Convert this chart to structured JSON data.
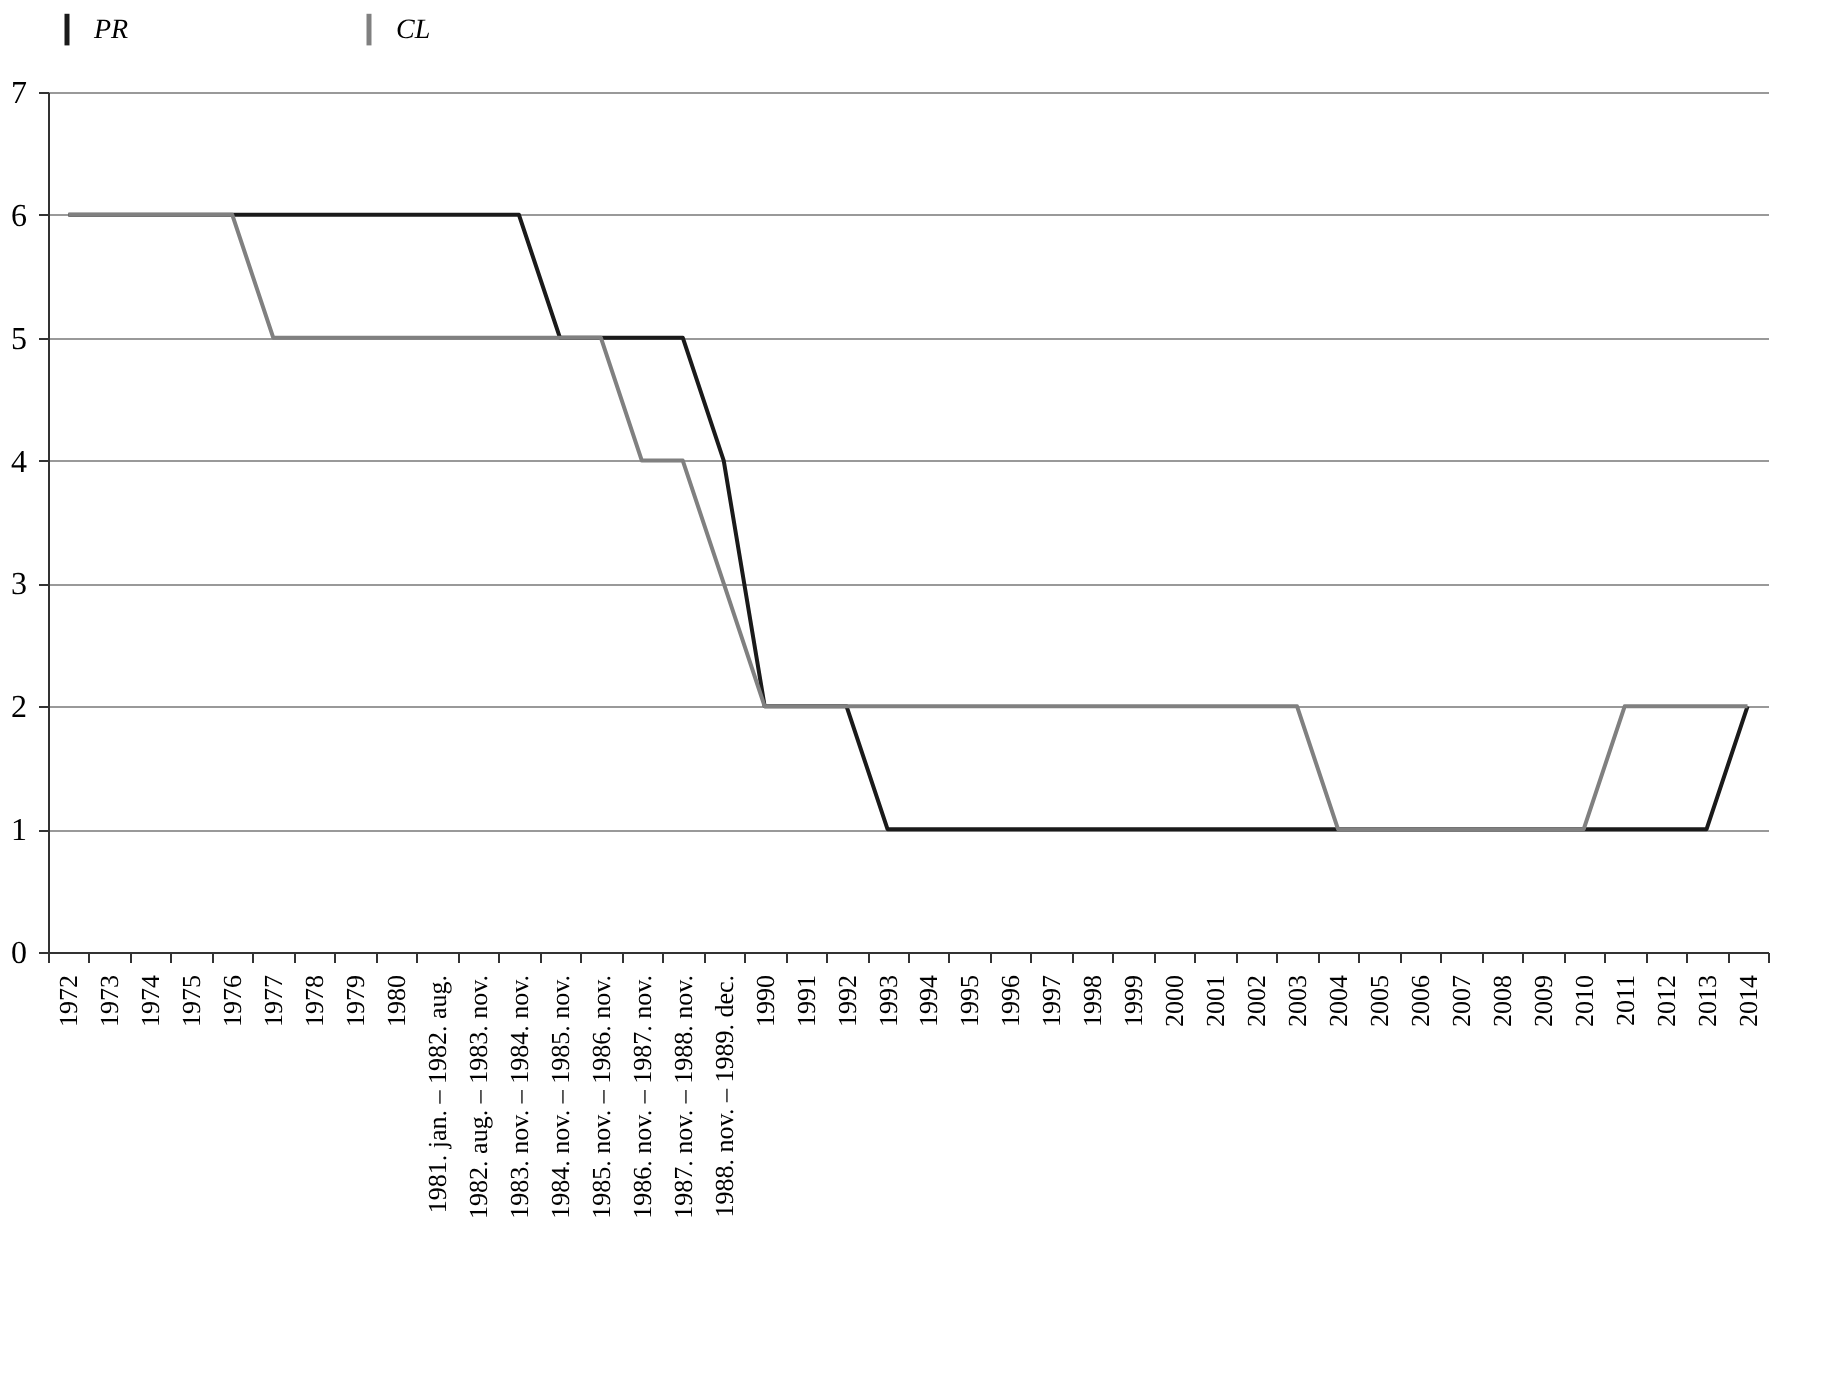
{
  "chart_data": {
    "type": "line",
    "categories": [
      "1972",
      "1973",
      "1974",
      "1975",
      "1976",
      "1977",
      "1978",
      "1979",
      "1980",
      "1981. jan. – 1982. aug.",
      "1982. aug. – 1983. nov.",
      "1983. nov. – 1984. nov.",
      "1984. nov. – 1985. nov.",
      "1985. nov. – 1986. nov.",
      "1986. nov. – 1987. nov.",
      "1987. nov. – 1988. nov.",
      "1988. nov. – 1989. dec.",
      "1990",
      "1991",
      "1992",
      "1993",
      "1994",
      "1995",
      "1996",
      "1997",
      "1998",
      "1999",
      "2000",
      "2001",
      "2002",
      "2003",
      "2004",
      "2005",
      "2006",
      "2007",
      "2008",
      "2009",
      "2010",
      "2011",
      "2012",
      "2013",
      "2014"
    ],
    "series": [
      {
        "name": "PR",
        "color": "#1a1a1a",
        "values": [
          6,
          6,
          6,
          6,
          6,
          6,
          6,
          6,
          6,
          6,
          6,
          6,
          5,
          5,
          5,
          5,
          4,
          2,
          2,
          2,
          1,
          1,
          1,
          1,
          1,
          1,
          1,
          1,
          1,
          1,
          1,
          1,
          1,
          1,
          1,
          1,
          1,
          1,
          1,
          1,
          1,
          2
        ]
      },
      {
        "name": "CL",
        "color": "#808080",
        "values": [
          6,
          6,
          6,
          6,
          6,
          5,
          5,
          5,
          5,
          5,
          5,
          5,
          5,
          5,
          4,
          4,
          3,
          2,
          2,
          2,
          2,
          2,
          2,
          2,
          2,
          2,
          2,
          2,
          2,
          2,
          2,
          1,
          1,
          1,
          1,
          1,
          1,
          1,
          2,
          2,
          2,
          2
        ]
      }
    ],
    "ylim": [
      0,
      7
    ],
    "yticks": [
      0,
      1,
      2,
      3,
      4,
      5,
      6,
      7
    ],
    "grid": "y",
    "legend": "top left",
    "line_style": "solid",
    "marker": "none"
  }
}
